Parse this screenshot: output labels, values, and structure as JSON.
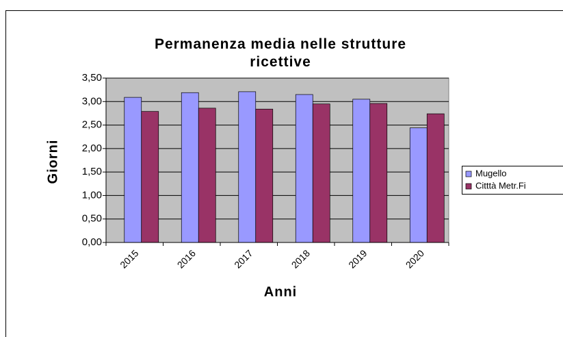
{
  "chart_data": {
    "type": "bar",
    "title": "Permanenza media nelle strutture ricettive",
    "x_label": "Anni",
    "y_label": "Giorni",
    "categories": [
      "2015",
      "2016",
      "2017",
      "2018",
      "2019",
      "2020"
    ],
    "series": [
      {
        "name": "Mugello",
        "color": "#9999ff",
        "values": [
          3.09,
          3.19,
          3.21,
          3.15,
          3.05,
          2.44
        ]
      },
      {
        "name": "Citttà Metr.Fi",
        "color": "#993366",
        "values": [
          2.79,
          2.86,
          2.84,
          2.95,
          2.96,
          2.74
        ]
      }
    ],
    "ylim": [
      0,
      3.5
    ],
    "yticks": [
      {
        "value": 0,
        "label": "0,00"
      },
      {
        "value": 0.5,
        "label": "0,50"
      },
      {
        "value": 1,
        "label": "1,00"
      },
      {
        "value": 1.5,
        "label": "1,50"
      },
      {
        "value": 2,
        "label": "2,00"
      },
      {
        "value": 2.5,
        "label": "2,50"
      },
      {
        "value": 3,
        "label": "3,00"
      },
      {
        "value": 3.5,
        "label": "3,50"
      }
    ],
    "grid": true,
    "legend": "right"
  }
}
